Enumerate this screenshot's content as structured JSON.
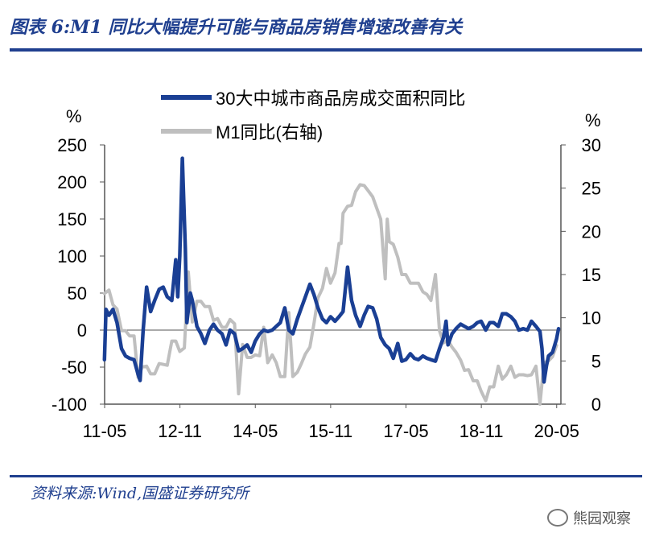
{
  "title": "图表 6:M1 同比大幅提升可能与商品房销售增速改善有关",
  "source": "资料来源:Wind,国盛证券研究所",
  "watermark": "熊园观察",
  "chart_data": {
    "type": "line",
    "left_axis_unit": "%",
    "right_axis_unit": "%",
    "left_ylim": [
      -100,
      250
    ],
    "left_yticks": [
      -100,
      -50,
      0,
      50,
      100,
      150,
      200,
      250
    ],
    "right_ylim": [
      0,
      30
    ],
    "right_yticks": [
      0,
      5,
      10,
      15,
      20,
      25,
      30
    ],
    "xlim": [
      2011.333,
      2020.417
    ],
    "xticks": [
      {
        "label": "11-05",
        "x": 2011.333
      },
      {
        "label": "12-11",
        "x": 2012.833
      },
      {
        "label": "14-05",
        "x": 2014.333
      },
      {
        "label": "15-11",
        "x": 2015.833
      },
      {
        "label": "17-05",
        "x": 2017.333
      },
      {
        "label": "18-11",
        "x": 2018.833
      },
      {
        "label": "20-05",
        "x": 2020.333
      }
    ],
    "grid": false,
    "legend_position": "top",
    "series": [
      {
        "name": "30大中城市商品房成交面积同比",
        "axis": "left",
        "color": "#1a3f94",
        "points": [
          [
            2011.33,
            -40
          ],
          [
            2011.36,
            28
          ],
          [
            2011.42,
            20
          ],
          [
            2011.5,
            28
          ],
          [
            2011.58,
            10
          ],
          [
            2011.67,
            -25
          ],
          [
            2011.75,
            -35
          ],
          [
            2011.83,
            -38
          ],
          [
            2011.92,
            -40
          ],
          [
            2012.0,
            -60
          ],
          [
            2012.04,
            -68
          ],
          [
            2012.1,
            0
          ],
          [
            2012.17,
            58
          ],
          [
            2012.25,
            25
          ],
          [
            2012.33,
            40
          ],
          [
            2012.42,
            55
          ],
          [
            2012.5,
            58
          ],
          [
            2012.58,
            45
          ],
          [
            2012.67,
            40
          ],
          [
            2012.75,
            95
          ],
          [
            2012.79,
            45
          ],
          [
            2012.83,
            100
          ],
          [
            2012.88,
            232
          ],
          [
            2012.94,
            110
          ],
          [
            2012.97,
            10
          ],
          [
            2013.04,
            50
          ],
          [
            2013.08,
            40
          ],
          [
            2013.17,
            5
          ],
          [
            2013.25,
            -5
          ],
          [
            2013.33,
            -18
          ],
          [
            2013.42,
            0
          ],
          [
            2013.5,
            8
          ],
          [
            2013.58,
            0
          ],
          [
            2013.67,
            -5
          ],
          [
            2013.75,
            -20
          ],
          [
            2013.83,
            0
          ],
          [
            2013.92,
            -5
          ],
          [
            2014.0,
            -28
          ],
          [
            2014.08,
            -25
          ],
          [
            2014.17,
            -20
          ],
          [
            2014.25,
            -30
          ],
          [
            2014.33,
            -15
          ],
          [
            2014.42,
            -5
          ],
          [
            2014.5,
            0
          ],
          [
            2014.58,
            -2
          ],
          [
            2014.67,
            0
          ],
          [
            2014.75,
            5
          ],
          [
            2014.83,
            10
          ],
          [
            2014.92,
            30
          ],
          [
            2015.0,
            0
          ],
          [
            2015.08,
            -5
          ],
          [
            2015.17,
            15
          ],
          [
            2015.25,
            30
          ],
          [
            2015.33,
            45
          ],
          [
            2015.42,
            62
          ],
          [
            2015.5,
            48
          ],
          [
            2015.58,
            30
          ],
          [
            2015.67,
            15
          ],
          [
            2015.75,
            10
          ],
          [
            2015.83,
            18
          ],
          [
            2015.92,
            12
          ],
          [
            2016.0,
            18
          ],
          [
            2016.08,
            25
          ],
          [
            2016.17,
            85
          ],
          [
            2016.25,
            40
          ],
          [
            2016.33,
            20
          ],
          [
            2016.42,
            5
          ],
          [
            2016.5,
            20
          ],
          [
            2016.58,
            32
          ],
          [
            2016.67,
            30
          ],
          [
            2016.75,
            15
          ],
          [
            2016.83,
            -10
          ],
          [
            2016.92,
            -20
          ],
          [
            2017.0,
            -25
          ],
          [
            2017.08,
            -38
          ],
          [
            2017.17,
            -18
          ],
          [
            2017.25,
            -42
          ],
          [
            2017.33,
            -40
          ],
          [
            2017.42,
            -32
          ],
          [
            2017.5,
            -38
          ],
          [
            2017.58,
            -40
          ],
          [
            2017.67,
            -35
          ],
          [
            2017.75,
            -38
          ],
          [
            2017.83,
            -40
          ],
          [
            2017.92,
            -42
          ],
          [
            2018.0,
            -25
          ],
          [
            2018.08,
            -10
          ],
          [
            2018.13,
            12
          ],
          [
            2018.17,
            -20
          ],
          [
            2018.25,
            -5
          ],
          [
            2018.33,
            2
          ],
          [
            2018.42,
            8
          ],
          [
            2018.5,
            5
          ],
          [
            2018.58,
            2
          ],
          [
            2018.67,
            5
          ],
          [
            2018.75,
            10
          ],
          [
            2018.83,
            12
          ],
          [
            2018.92,
            0
          ],
          [
            2019.0,
            10
          ],
          [
            2019.08,
            10
          ],
          [
            2019.17,
            5
          ],
          [
            2019.25,
            22
          ],
          [
            2019.33,
            22
          ],
          [
            2019.42,
            18
          ],
          [
            2019.5,
            12
          ],
          [
            2019.58,
            0
          ],
          [
            2019.67,
            2
          ],
          [
            2019.75,
            0
          ],
          [
            2019.83,
            12
          ],
          [
            2019.92,
            5
          ],
          [
            2020.0,
            -2
          ],
          [
            2020.04,
            -25
          ],
          [
            2020.08,
            -70
          ],
          [
            2020.13,
            -48
          ],
          [
            2020.17,
            -35
          ],
          [
            2020.25,
            -30
          ],
          [
            2020.33,
            -12
          ],
          [
            2020.37,
            2
          ]
        ]
      },
      {
        "name": "M1同比(右轴)",
        "axis": "right",
        "color": "#bfbfbf",
        "points": [
          [
            2011.33,
            12.8
          ],
          [
            2011.42,
            13.2
          ],
          [
            2011.5,
            11.5
          ],
          [
            2011.58,
            11.0
          ],
          [
            2011.67,
            8.5
          ],
          [
            2011.75,
            8.5
          ],
          [
            2011.83,
            7.9
          ],
          [
            2011.92,
            7.9
          ],
          [
            2012.0,
            3.1
          ],
          [
            2012.08,
            4.3
          ],
          [
            2012.17,
            4.4
          ],
          [
            2012.25,
            3.5
          ],
          [
            2012.33,
            3.5
          ],
          [
            2012.42,
            4.7
          ],
          [
            2012.5,
            4.6
          ],
          [
            2012.58,
            4.5
          ],
          [
            2012.67,
            7.3
          ],
          [
            2012.75,
            7.3
          ],
          [
            2012.83,
            6.1
          ],
          [
            2012.92,
            6.5
          ],
          [
            2013.0,
            15.3
          ],
          [
            2013.08,
            9.5
          ],
          [
            2013.17,
            11.9
          ],
          [
            2013.25,
            11.9
          ],
          [
            2013.33,
            11.3
          ],
          [
            2013.42,
            11.3
          ],
          [
            2013.5,
            9.7
          ],
          [
            2013.58,
            9.9
          ],
          [
            2013.67,
            8.9
          ],
          [
            2013.75,
            8.9
          ],
          [
            2013.83,
            9.8
          ],
          [
            2013.92,
            9.3
          ],
          [
            2014.0,
            1.2
          ],
          [
            2014.08,
            6.9
          ],
          [
            2014.17,
            5.4
          ],
          [
            2014.25,
            5.4
          ],
          [
            2014.33,
            5.7
          ],
          [
            2014.42,
            5.6
          ],
          [
            2014.5,
            8.9
          ],
          [
            2014.58,
            4.8
          ],
          [
            2014.67,
            5.7
          ],
          [
            2014.75,
            4.8
          ],
          [
            2014.83,
            3.2
          ],
          [
            2014.92,
            3.2
          ],
          [
            2015.0,
            10.6
          ],
          [
            2015.08,
            3.2
          ],
          [
            2015.17,
            3.7
          ],
          [
            2015.25,
            4.7
          ],
          [
            2015.33,
            5.8
          ],
          [
            2015.42,
            6.6
          ],
          [
            2015.5,
            9.3
          ],
          [
            2015.58,
            12.3
          ],
          [
            2015.67,
            13.4
          ],
          [
            2015.75,
            15.7
          ],
          [
            2015.83,
            14.0
          ],
          [
            2015.92,
            15.2
          ],
          [
            2016.0,
            18.6
          ],
          [
            2016.04,
            18.6
          ],
          [
            2016.08,
            22.1
          ],
          [
            2016.17,
            22.9
          ],
          [
            2016.25,
            23.0
          ],
          [
            2016.33,
            24.6
          ],
          [
            2016.42,
            25.4
          ],
          [
            2016.5,
            25.3
          ],
          [
            2016.58,
            24.7
          ],
          [
            2016.67,
            24.0
          ],
          [
            2016.75,
            22.7
          ],
          [
            2016.83,
            21.4
          ],
          [
            2016.92,
            14.5
          ],
          [
            2016.96,
            21.4
          ],
          [
            2017.0,
            18.8
          ],
          [
            2017.08,
            18.5
          ],
          [
            2017.17,
            17.0
          ],
          [
            2017.25,
            15.0
          ],
          [
            2017.33,
            15.0
          ],
          [
            2017.42,
            14.0
          ],
          [
            2017.5,
            14.0
          ],
          [
            2017.58,
            14.0
          ],
          [
            2017.67,
            13.0
          ],
          [
            2017.75,
            12.7
          ],
          [
            2017.83,
            12.0
          ],
          [
            2017.92,
            15.0
          ],
          [
            2018.0,
            8.5
          ],
          [
            2018.08,
            7.1
          ],
          [
            2018.17,
            7.4
          ],
          [
            2018.25,
            6.6
          ],
          [
            2018.33,
            6.0
          ],
          [
            2018.42,
            5.1
          ],
          [
            2018.5,
            3.9
          ],
          [
            2018.58,
            4.0
          ],
          [
            2018.67,
            2.7
          ],
          [
            2018.75,
            2.7
          ],
          [
            2018.83,
            1.5
          ],
          [
            2018.92,
            0.4
          ],
          [
            2019.0,
            2.0
          ],
          [
            2019.08,
            2.0
          ],
          [
            2019.17,
            4.4
          ],
          [
            2019.25,
            2.9
          ],
          [
            2019.33,
            3.4
          ],
          [
            2019.42,
            4.4
          ],
          [
            2019.5,
            3.1
          ],
          [
            2019.58,
            3.4
          ],
          [
            2019.67,
            3.4
          ],
          [
            2019.75,
            3.3
          ],
          [
            2019.83,
            3.4
          ],
          [
            2019.92,
            4.4
          ],
          [
            2020.0,
            0.0
          ],
          [
            2020.08,
            4.8
          ],
          [
            2020.17,
            5.0
          ],
          [
            2020.25,
            5.5
          ],
          [
            2020.33,
            6.8
          ]
        ]
      }
    ]
  }
}
